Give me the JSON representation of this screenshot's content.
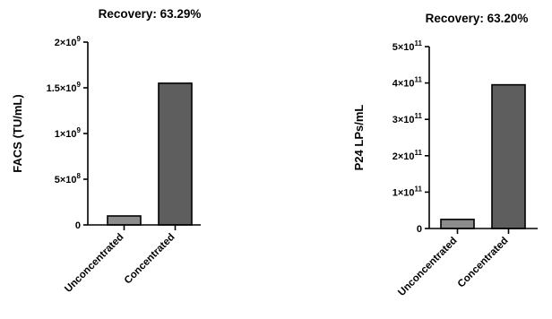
{
  "chart_data": [
    {
      "type": "bar",
      "title": "Recovery: 63.29%",
      "ylabel": "FACS (TU/mL)",
      "xlabel": "",
      "categories": [
        "Unconcentrated",
        "Concentrated"
      ],
      "values": [
        98000000,
        1550000000
      ],
      "ylim": [
        0,
        2000000000
      ],
      "yticks": [
        {
          "value": 0,
          "base": "0",
          "exp": ""
        },
        {
          "value": 500000000,
          "base": "5×10",
          "exp": "8"
        },
        {
          "value": 1000000000,
          "base": "1×10",
          "exp": "9"
        },
        {
          "value": 1500000000,
          "base": "1.5×10",
          "exp": "9"
        },
        {
          "value": 2000000000,
          "base": "2×10",
          "exp": "9"
        }
      ],
      "bar_colors": [
        "#8c8c8c",
        "#5e5e5e"
      ]
    },
    {
      "type": "bar",
      "title": "Recovery: 63.20%",
      "ylabel": "P24 LPs/mL",
      "xlabel": "",
      "categories": [
        "Unconcentrated",
        "Concentrated"
      ],
      "values": [
        25000000000,
        395000000000
      ],
      "ylim": [
        0,
        500000000000
      ],
      "yticks": [
        {
          "value": 0,
          "base": "0",
          "exp": ""
        },
        {
          "value": 100000000000,
          "base": "1×10",
          "exp": "11"
        },
        {
          "value": 200000000000,
          "base": "2×10",
          "exp": "11"
        },
        {
          "value": 300000000000,
          "base": "3×10",
          "exp": "11"
        },
        {
          "value": 400000000000,
          "base": "4×10",
          "exp": "11"
        },
        {
          "value": 500000000000,
          "base": "5×10",
          "exp": "11"
        }
      ],
      "bar_colors": [
        "#8c8c8c",
        "#5e5e5e"
      ]
    }
  ]
}
